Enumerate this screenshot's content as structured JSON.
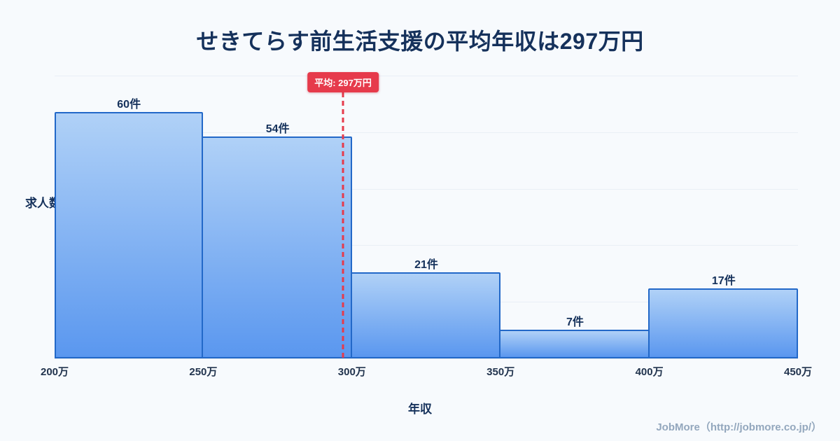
{
  "title": "せきてらす前生活支援の平均年収は297万円",
  "footer": "JobMore（http://jobmore.co.jp/）",
  "chart_data": {
    "type": "bar",
    "title": "せきてらす前生活支援の平均年収は297万円",
    "xlabel": "年収",
    "ylabel": "求人数",
    "x_ticks": [
      "200万",
      "250万",
      "300万",
      "350万",
      "400万",
      "450万"
    ],
    "bin_edges": [
      200,
      250,
      300,
      350,
      400,
      450
    ],
    "values": [
      60,
      54,
      21,
      7,
      17
    ],
    "bar_labels": [
      "60件",
      "54件",
      "21件",
      "7件",
      "17件"
    ],
    "average": 297,
    "average_label": "平均: 297万円",
    "xlim": [
      200,
      450
    ],
    "ylim": [
      0,
      69
    ],
    "grid": true,
    "legend": "none",
    "colors": {
      "background": "#f7fafd",
      "title": "#15315b",
      "bar_top": "#b0d1f7",
      "bar_bottom": "#5a97ef",
      "bar_border": "#2268c8",
      "average_line": "#e63a4b",
      "footer": "#93a7bd"
    }
  }
}
